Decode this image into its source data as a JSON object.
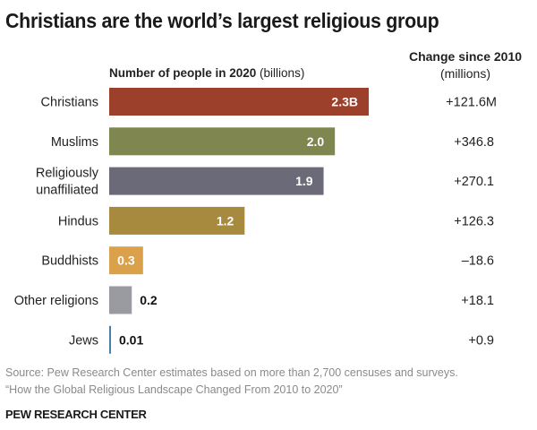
{
  "title": "Christians are the world’s largest religious group",
  "column_header": {
    "bold": "Number of people in 2020",
    "unit": " (billions)"
  },
  "change_header": {
    "main": "Change since 2010",
    "unit": "(millions)"
  },
  "chart_data": {
    "type": "bar",
    "orientation": "horizontal",
    "title": "Christians are the world’s largest religious group",
    "xlabel": "Number of people in 2020 (billions)",
    "ylabel": "",
    "xlim": [
      0,
      2.3
    ],
    "grid": false,
    "categories": [
      [
        "Christians"
      ],
      [
        "Muslims"
      ],
      [
        "Religiously",
        "unaffiliated"
      ],
      [
        "Hindus"
      ],
      [
        "Buddhists"
      ],
      [
        "Other religions"
      ],
      [
        "Jews"
      ]
    ],
    "values": [
      2.3,
      2.0,
      1.9,
      1.2,
      0.3,
      0.2,
      0.01
    ],
    "value_labels": [
      "2.3B",
      "2.0",
      "1.9",
      "1.2",
      "0.3",
      "0.2",
      "0.01"
    ],
    "label_inside": [
      true,
      true,
      true,
      true,
      true,
      false,
      false
    ],
    "colors": [
      "#9c3f2b",
      "#7f8650",
      "#6b6a78",
      "#a88a3e",
      "#dba14a",
      "#9a9ba0",
      "#4a7fa8"
    ],
    "change_since_2010_millions": [
      121.6,
      346.8,
      270.1,
      126.3,
      -18.6,
      18.1,
      0.9
    ],
    "change_labels": [
      "+121.6M",
      "+346.8",
      "+270.1",
      "+126.3",
      "–18.6",
      "+18.1",
      "+0.9"
    ]
  },
  "footer": {
    "source_line1": "Source: Pew Research Center estimates based on more than 2,700 censuses and surveys.",
    "source_line2": "“How the Global Religious Landscape Changed From 2010 to 2020”",
    "brand": "PEW RESEARCH CENTER"
  }
}
